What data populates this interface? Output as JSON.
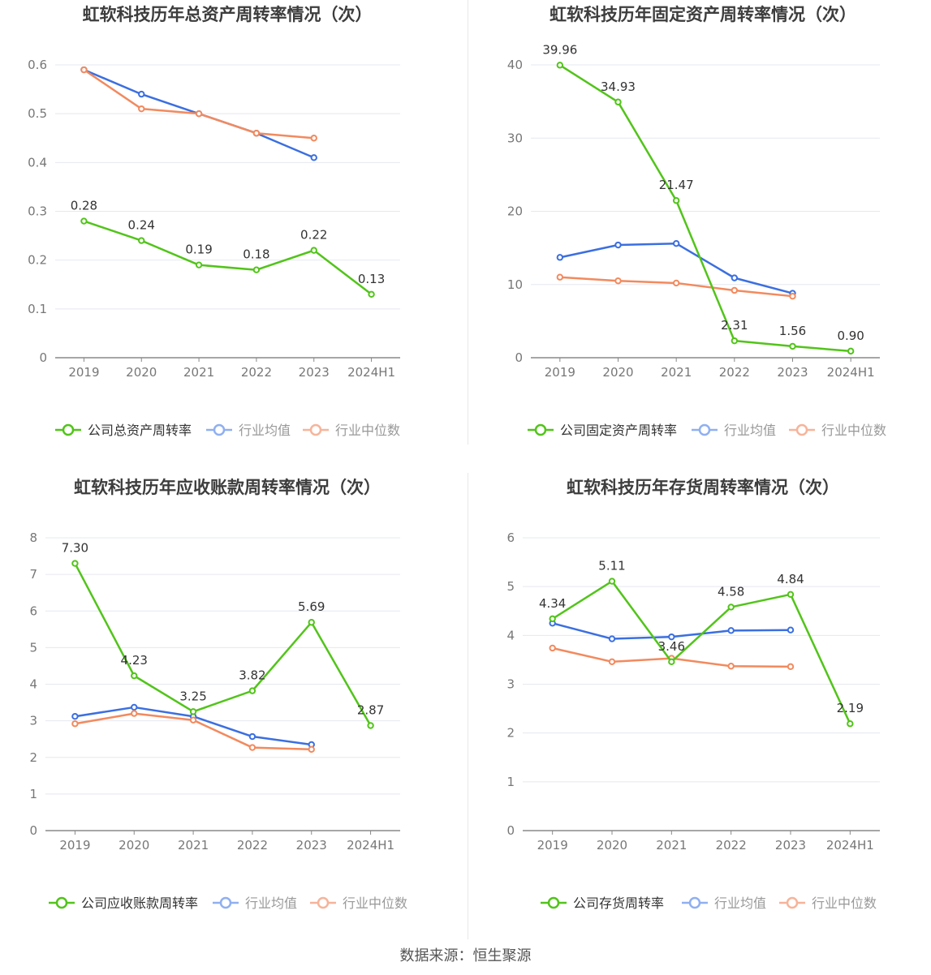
{
  "footer": {
    "source": "数据来源：恒生聚源"
  },
  "colors": {
    "company": "#52c41a",
    "mean": "#3b6fe0",
    "median": "#f28a5e",
    "grid": "#e6e8ef",
    "axis": "#888888"
  },
  "chart_data": [
    {
      "type": "line",
      "title": "虹软科技历年总资产周转率情况（次）",
      "categories": [
        "2019",
        "2020",
        "2021",
        "2022",
        "2023",
        "2024H1"
      ],
      "ylim": [
        0,
        0.6
      ],
      "yticks": [
        "0",
        "0.1",
        "0.2",
        "0.3",
        "0.4",
        "0.5",
        "0.6"
      ],
      "series": [
        {
          "name": "公司总资产周转率",
          "key": "company",
          "values": [
            0.28,
            0.24,
            0.19,
            0.18,
            0.22,
            0.13
          ],
          "labels": [
            "0.28",
            "0.24",
            "0.19",
            "0.18",
            "0.22",
            "0.13"
          ]
        },
        {
          "name": "行业均值",
          "key": "mean",
          "values": [
            0.59,
            0.54,
            0.5,
            0.46,
            0.41,
            null
          ]
        },
        {
          "name": "行业中位数",
          "key": "median",
          "values": [
            0.59,
            0.51,
            0.5,
            0.46,
            0.45,
            null
          ]
        }
      ]
    },
    {
      "type": "line",
      "title": "虹软科技历年固定资产周转率情况（次）",
      "categories": [
        "2019",
        "2020",
        "2021",
        "2022",
        "2023",
        "2024H1"
      ],
      "ylim": [
        0,
        40
      ],
      "yticks": [
        "0",
        "10",
        "20",
        "30",
        "40"
      ],
      "series": [
        {
          "name": "公司固定资产周转率",
          "key": "company",
          "values": [
            39.96,
            34.93,
            21.47,
            2.31,
            1.56,
            0.9
          ],
          "labels": [
            "39.96",
            "34.93",
            "21.47",
            "2.31",
            "1.56",
            "0.90"
          ]
        },
        {
          "name": "行业均值",
          "key": "mean",
          "values": [
            13.7,
            15.4,
            15.6,
            10.9,
            8.8,
            null
          ]
        },
        {
          "name": "行业中位数",
          "key": "median",
          "values": [
            11.0,
            10.5,
            10.2,
            9.2,
            8.4,
            null
          ]
        }
      ]
    },
    {
      "type": "line",
      "title": "虹软科技历年应收账款周转率情况（次）",
      "categories": [
        "2019",
        "2020",
        "2021",
        "2022",
        "2023",
        "2024H1"
      ],
      "ylim": [
        0,
        8
      ],
      "yticks": [
        "0",
        "1",
        "2",
        "3",
        "4",
        "5",
        "6",
        "7",
        "8"
      ],
      "series": [
        {
          "name": "公司应收账款周转率",
          "key": "company",
          "values": [
            7.3,
            4.23,
            3.25,
            3.82,
            5.69,
            2.87
          ],
          "labels": [
            "7.30",
            "4.23",
            "3.25",
            "3.82",
            "5.69",
            "2.87"
          ]
        },
        {
          "name": "行业均值",
          "key": "mean",
          "values": [
            3.12,
            3.37,
            3.12,
            2.57,
            2.35,
            null
          ]
        },
        {
          "name": "行业中位数",
          "key": "median",
          "values": [
            2.92,
            3.2,
            3.02,
            2.27,
            2.22,
            null
          ]
        }
      ]
    },
    {
      "type": "line",
      "title": "虹软科技历年存货周转率情况（次）",
      "categories": [
        "2019",
        "2020",
        "2021",
        "2022",
        "2023",
        "2024H1"
      ],
      "ylim": [
        0,
        6
      ],
      "yticks": [
        "0",
        "1",
        "2",
        "3",
        "4",
        "5",
        "6"
      ],
      "series": [
        {
          "name": "公司存货周转率",
          "key": "company",
          "values": [
            4.34,
            5.11,
            3.46,
            4.58,
            4.84,
            2.19
          ],
          "labels": [
            "4.34",
            "5.11",
            "3.46",
            "4.58",
            "4.84",
            "2.19"
          ]
        },
        {
          "name": "行业均值",
          "key": "mean",
          "values": [
            4.25,
            3.93,
            3.97,
            4.1,
            4.11,
            null
          ]
        },
        {
          "name": "行业中位数",
          "key": "median",
          "values": [
            3.74,
            3.46,
            3.53,
            3.37,
            3.36,
            null
          ]
        }
      ]
    }
  ]
}
